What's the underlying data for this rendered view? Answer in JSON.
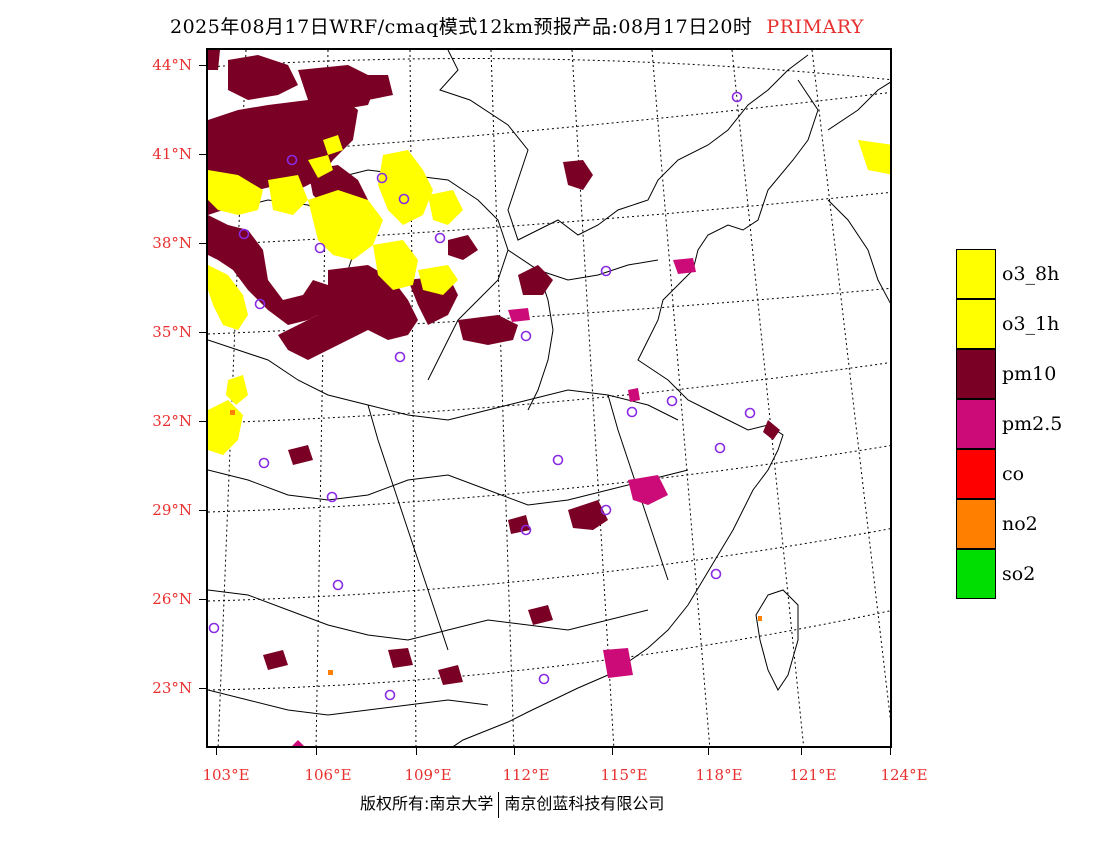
{
  "title": {
    "text": "2025年08月17日WRF/cmaq模式12km预报产品:08月17日20时",
    "tag": "PRIMARY"
  },
  "latitudes": [
    "44°N",
    "41°N",
    "38°N",
    "35°N",
    "32°N",
    "29°N",
    "26°N",
    "23°N"
  ],
  "longitudes": [
    "103°E",
    "106°E",
    "109°E",
    "112°E",
    "115°E",
    "118°E",
    "121°E",
    "124°E"
  ],
  "legend": [
    {
      "label": "o3_8h",
      "color": "#ffff00"
    },
    {
      "label": "o3_1h",
      "color": "#ffff00"
    },
    {
      "label": "pm10",
      "color": "#7a0025"
    },
    {
      "label": "pm2.5",
      "color": "#cc0a78"
    },
    {
      "label": "co",
      "color": "#ff0000"
    },
    {
      "label": "no2",
      "color": "#ff8000"
    },
    {
      "label": "so2",
      "color": "#00dd00"
    }
  ],
  "colors": {
    "o3": "#ffff00",
    "pm10": "#7a0025",
    "pm25": "#cc0a78",
    "no2": "#ff8000",
    "station_ring": "#8a2be2",
    "axis_label": "#e8302f"
  },
  "copyright": {
    "left": "版权所有:南京大学",
    "right": "南京创蓝科技有限公司"
  }
}
